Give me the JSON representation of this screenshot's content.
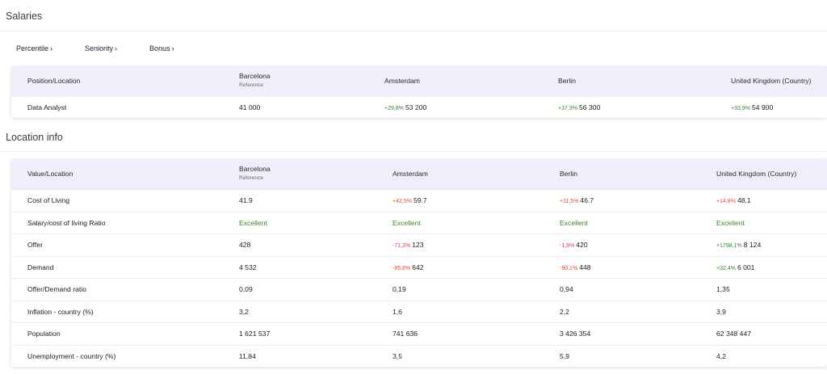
{
  "salaries": {
    "title": "Salaries",
    "filters": [
      {
        "label": "Percentile",
        "chevron": "›"
      },
      {
        "label": "Seniority",
        "chevron": "›"
      },
      {
        "label": "Bonus",
        "chevron": "›"
      }
    ],
    "header": {
      "col0": "Position/Location",
      "col1_main": "Barcelona",
      "col1_sub": "Reference",
      "col2": "Amsterdam",
      "col3": "Berlin",
      "col4": "United Kingdom (Country)"
    },
    "row": {
      "label": "Data Analyst",
      "c1": "41 000",
      "c2_delta": "+29,8%",
      "c2": "53 200",
      "c3_delta": "+37,3%",
      "c3": "56 300",
      "c4_delta": "+33,9%",
      "c4": "54 900"
    }
  },
  "location": {
    "title": "Location info",
    "header": {
      "col0": "Value/Location",
      "col1_main": "Barcelona",
      "col1_sub": "Reference",
      "col2": "Amsterdam",
      "col3": "Berlin",
      "col4": "United Kingdom (Country)"
    },
    "rows": [
      {
        "label": "Cost of Living",
        "c1": "41.9",
        "c2_delta": "+42,5%",
        "c2_dir": "neg",
        "c2": "59.7",
        "c3_delta": "+11,5%",
        "c3_dir": "neg",
        "c3": "46.7",
        "c4_delta": "+14,8%",
        "c4_dir": "neg",
        "c4": "48,1"
      },
      {
        "label": "Salary/cost of living Ratio",
        "c1": "Excellent",
        "c2_delta": "",
        "c2_dir": "",
        "c2": "Excellent",
        "c3_delta": "",
        "c3_dir": "",
        "c3": "Excellent",
        "c4_delta": "",
        "c4_dir": "",
        "c4": "Excellent",
        "excellent": true
      },
      {
        "label": "Offer",
        "c1": "428",
        "c2_delta": "-71,3%",
        "c2_dir": "neg",
        "c2": "123",
        "c3_delta": "-1,9%",
        "c3_dir": "neg",
        "c3": "420",
        "c4_delta": "+1798,1%",
        "c4_dir": "pos",
        "c4": "8 124"
      },
      {
        "label": "Demand",
        "c1": "4 532",
        "c2_delta": "-85,8%",
        "c2_dir": "neg",
        "c2": "642",
        "c3_delta": "-90,1%",
        "c3_dir": "neg",
        "c3": "448",
        "c4_delta": "+32,4%",
        "c4_dir": "pos",
        "c4": "6 001"
      },
      {
        "label": "Offer/Demand ratio",
        "c1": "0,09",
        "c2_delta": "",
        "c2_dir": "",
        "c2": "0,19",
        "c3_delta": "",
        "c3_dir": "",
        "c3": "0,94",
        "c4_delta": "",
        "c4_dir": "",
        "c4": "1,35"
      },
      {
        "label": "Inflation - country (%)",
        "c1": "3,2",
        "c2_delta": "",
        "c2_dir": "",
        "c2": "1,6",
        "c3_delta": "",
        "c3_dir": "",
        "c3": "2,2",
        "c4_delta": "",
        "c4_dir": "",
        "c4": "3,9"
      },
      {
        "label": "Population",
        "c1": "1 621 537",
        "c2_delta": "",
        "c2_dir": "",
        "c2": "741 636",
        "c3_delta": "",
        "c3_dir": "",
        "c3": "3 426 354",
        "c4_delta": "",
        "c4_dir": "",
        "c4": "62 348 447"
      },
      {
        "label": "Unemployment - country (%)",
        "c1": "11,84",
        "c2_delta": "",
        "c2_dir": "",
        "c2": "3,5",
        "c3_delta": "",
        "c3_dir": "",
        "c3": "5,9",
        "c4_delta": "",
        "c4_dir": "",
        "c4": "4,2"
      }
    ]
  },
  "colors": {
    "header_bg": "#efeffb",
    "positive": "#2f8a2f",
    "negative": "#d94a3a",
    "excellent": "#3a8a1f"
  }
}
